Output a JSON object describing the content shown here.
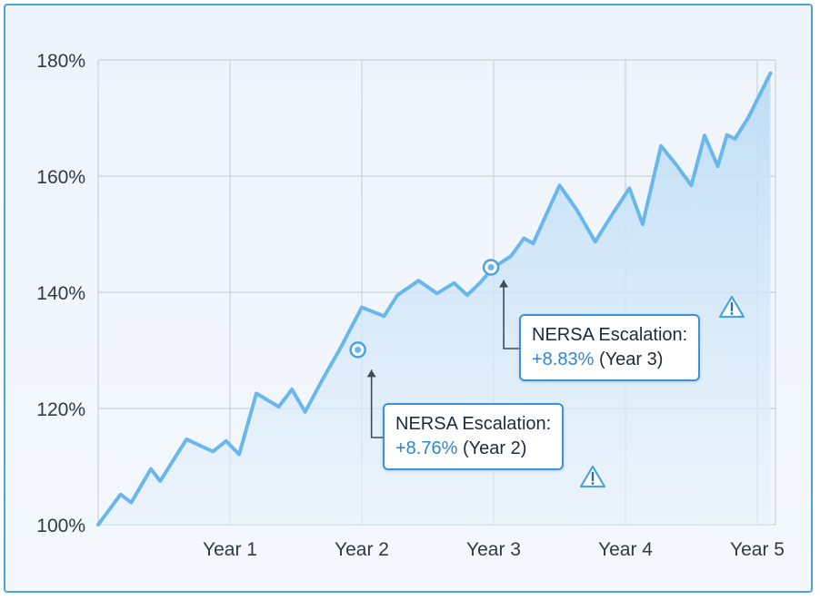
{
  "chart_data": {
    "type": "area",
    "y_ticks": [
      "100%",
      "120%",
      "140%",
      "160%",
      "180%"
    ],
    "x_ticks": [
      "Year 1",
      "Year 2",
      "Year 3",
      "Year 4",
      "Year 5"
    ],
    "ylim": [
      100,
      180
    ],
    "xlim": [
      0,
      5
    ],
    "grid": true,
    "colors": {
      "line": "#6ab7ec",
      "fill": "#cfe6f8",
      "accent": "#2a86d6",
      "warning": "#4aa3df"
    },
    "series": [
      {
        "x": [
          0,
          0.17,
          0.25,
          0.4,
          0.47,
          0.67,
          0.87,
          0.97,
          1.07,
          1.2,
          1.37,
          1.47,
          1.57,
          1.7,
          1.83,
          2.0,
          2.17,
          2.27,
          2.43,
          2.57,
          2.7,
          2.8,
          2.9,
          3.0,
          3.13,
          3.23,
          3.3,
          3.5,
          3.63,
          3.77,
          3.9,
          4.03,
          4.13,
          4.27,
          4.37,
          4.5,
          4.6,
          4.7,
          4.77,
          4.83,
          4.93,
          5.1
        ],
        "y": [
          100,
          105.2,
          103.8,
          109.6,
          107.5,
          114.7,
          112.6,
          114.4,
          112.1,
          122.6,
          120.3,
          123.3,
          119.4,
          124.9,
          130.1,
          137.4,
          135.9,
          139.5,
          142.0,
          139.8,
          141.6,
          139.5,
          141.7,
          144.3,
          146.2,
          149.3,
          148.4,
          158.4,
          154.2,
          148.7,
          153.4,
          157.9,
          151.7,
          165.2,
          162.4,
          158.4,
          167.0,
          161.7,
          167.1,
          166.4,
          170.0,
          177.7
        ]
      }
    ],
    "markers": [
      {
        "x": 1.97,
        "y": 130.1
      },
      {
        "x": 2.98,
        "y": 144.3
      }
    ],
    "annotations": [
      {
        "title": "NERSA Escalation:",
        "value": "+8.76%",
        "suffix": "(Year 2)"
      },
      {
        "title": "NERSA Escalation:",
        "value": "+8.83%",
        "suffix": "(Year 3)"
      }
    ]
  }
}
